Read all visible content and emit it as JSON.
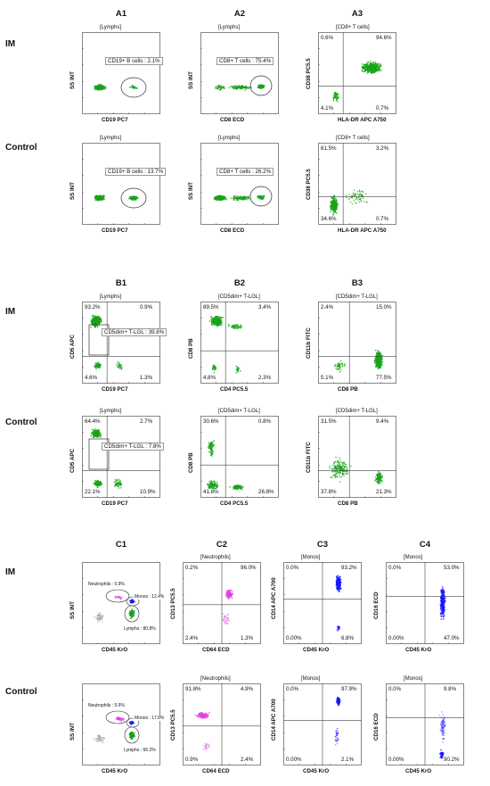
{
  "sections": [
    {
      "id": "A",
      "titles": [
        "A1",
        "A2",
        "A3"
      ],
      "rows": [
        {
          "label": "IM",
          "panels": [
            {
              "gate": "[Lymphs]",
              "x": "CD19 PC7",
              "y": "SS INT",
              "kind": "pop",
              "pop": "CD19+ B cells : 2.1%"
            },
            {
              "gate": "[Lymphs]",
              "x": "CD8 ECD",
              "y": "SS INT",
              "kind": "pop",
              "pop": "CD8+ T cells : 75.4%"
            },
            {
              "gate": "[CD8+ T cells]",
              "x": "HLA-DR APC A750",
              "y": "CD38 PC5.5",
              "kind": "quad",
              "q": [
                "0.6%",
                "94.6%",
                "4.1%",
                "0.7%"
              ]
            }
          ]
        },
        {
          "label": "Control",
          "panels": [
            {
              "gate": "[Lymphs]",
              "x": "CD19 PC7",
              "y": "SS INT",
              "kind": "pop",
              "pop": "CD19+ B cells : 13.7%"
            },
            {
              "gate": "[Lymphs]",
              "x": "CD8 ECD",
              "y": "SS INT",
              "kind": "pop",
              "pop": "CD8+ T cells : 26.2%"
            },
            {
              "gate": "[CD8+ T cells]",
              "x": "HLA-DR APC A750",
              "y": "CD38 PC5.5",
              "kind": "quad",
              "q": [
                "61.5%",
                "3.2%",
                "34.6%",
                "0.7%"
              ]
            }
          ]
        }
      ]
    },
    {
      "id": "B",
      "titles": [
        "B1",
        "B2",
        "B3"
      ],
      "rows": [
        {
          "label": "IM",
          "panels": [
            {
              "gate": "[Lymphs]",
              "x": "CD19 PC7",
              "y": "CD5 APC",
              "kind": "quad",
              "q": [
                "93.2%",
                "0.9%",
                "4.6%",
                "1.3%"
              ],
              "pop": "CD5dim+ T-LGL : 39.8%"
            },
            {
              "gate": "[CD5dim+ T-LGL]",
              "x": "CD4 PC5.5",
              "y": "CD8 PB",
              "kind": "quad",
              "q": [
                "89.5%",
                "3.4%",
                "4.8%",
                "2.3%"
              ]
            },
            {
              "gate": "[CD5dim+ T-LGL]",
              "x": "CD8 PB",
              "y": "CD11b FITC",
              "kind": "quad",
              "q": [
                "2.4%",
                "15.0%",
                "5.1%",
                "77.5%"
              ]
            }
          ]
        },
        {
          "label": "Control",
          "panels": [
            {
              "gate": "[Lymphs]",
              "x": "CD19 PC7",
              "y": "CD5 APC",
              "kind": "quad",
              "q": [
                "64.4%",
                "2.7%",
                "22.1%",
                "10.9%"
              ],
              "pop": "CD5dim+ T-LGL : 7.8%"
            },
            {
              "gate": "[CD5dim+ T-LGL]",
              "x": "CD4 PC5.5",
              "y": "CD8 PB",
              "kind": "quad",
              "q": [
                "30.6%",
                "0.8%",
                "41.8%",
                "26.8%"
              ]
            },
            {
              "gate": "[CD5dim+ T-LGL]",
              "x": "CD8 PB",
              "y": "CD11b FITC",
              "kind": "quad",
              "q": [
                "31.5%",
                "9.4%",
                "37.8%",
                "21.3%"
              ]
            }
          ]
        }
      ]
    },
    {
      "id": "C",
      "titles": [
        "C1",
        "C2",
        "C3",
        "C4"
      ],
      "rows": [
        {
          "label": "IM",
          "panels": [
            {
              "gate": "",
              "x": "CD45 KrO",
              "y": "SS INT",
              "kind": "c1",
              "pops": [
                "Neutrophils : 0.9%",
                "Monos : 12.4%",
                "Lymphs : 80.8%"
              ]
            },
            {
              "gate": "[Neutrophils]",
              "x": "CD64 ECD",
              "y": "CD13 PC5.5",
              "kind": "quad",
              "q": [
                "0.2%",
                "96.0%",
                "2.4%",
                "1.3%"
              ]
            },
            {
              "gate": "[Monos]",
              "x": "CD45 KrO",
              "y": "CD14 APC A700",
              "kind": "quad",
              "q": [
                "0.0%",
                "93.2%",
                "0.00%",
                "6.8%"
              ]
            },
            {
              "gate": "[Monos]",
              "x": "CD45 KrO",
              "y": "CD16 ECD",
              "kind": "quad",
              "q": [
                "0.0%",
                "53.0%",
                "0.00%",
                "47.0%"
              ]
            }
          ]
        },
        {
          "label": "Control",
          "panels": [
            {
              "gate": "",
              "x": "CD45 KrO",
              "y": "SS INT",
              "kind": "c1",
              "pops": [
                "Neutrophils : 5.6%",
                "Monos : 17.8%",
                "Lymphs : 66.2%"
              ]
            },
            {
              "gate": "[Neutrophils]",
              "x": "CD64 ECD",
              "y": "CD13 PC5.5",
              "kind": "quad",
              "q": [
                "91.8%",
                "4.9%",
                "0.9%",
                "2.4%"
              ]
            },
            {
              "gate": "[Monos]",
              "x": "CD45 KrO",
              "y": "CD14 APC A700",
              "kind": "quad",
              "q": [
                "0.0%",
                "97.9%",
                "0.00%",
                "2.1%"
              ]
            },
            {
              "gate": "[Monos]",
              "x": "CD45 KrO",
              "y": "CD16 ECD",
              "kind": "quad",
              "q": [
                "0.0%",
                "9.8%",
                "0.00%",
                "90.2%"
              ]
            }
          ]
        }
      ]
    }
  ],
  "colors": {
    "green": "#1aa31a",
    "blue": "#1a1aff",
    "magenta": "#e040e0",
    "grey": "#a0a0a0"
  }
}
